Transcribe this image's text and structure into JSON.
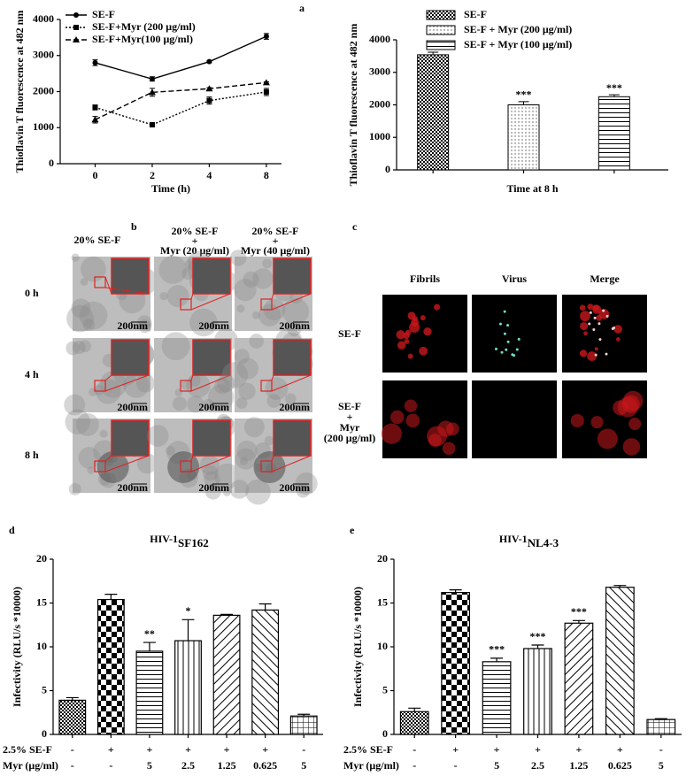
{
  "panel_labels": [
    "a",
    "b",
    "c",
    "d",
    "e"
  ],
  "micrographs": {
    "column_headers": [
      [
        "20% SE-F"
      ],
      [
        "20% SE-F",
        "+",
        "Myr (20 μg/ml)"
      ],
      [
        "20% SE-F",
        "+",
        "Myr (40 μg/ml)"
      ]
    ],
    "row_labels": [
      "0 h",
      "4 h",
      "8 h"
    ],
    "scale_label": "200nm"
  },
  "confocal": {
    "column_headers": [
      "Fibrils",
      "Virus",
      "Merge"
    ],
    "row_labels": [
      [
        "SE-F"
      ],
      [
        "SE-F",
        "+",
        "Myr",
        "(200 μg/ml)"
      ]
    ]
  },
  "chart_data": [
    {
      "type": "line",
      "x_label": "Time (h)",
      "y_label": "Thioflavin T fluorescence at 482 nm",
      "categories": [
        "0",
        "2",
        "4",
        "8"
      ],
      "ylim": [
        0,
        4000
      ],
      "yticks": [
        0,
        1000,
        2000,
        3000,
        4000
      ],
      "series": [
        {
          "name": "SE-F",
          "color": "#000000",
          "marker": "circle",
          "dash": "solid",
          "values": [
            2800,
            2350,
            2830,
            3530
          ],
          "errors": [
            80,
            60,
            30,
            80
          ]
        },
        {
          "name": "SE-F+Myr (200 μg/ml)",
          "color": "#000000",
          "marker": "square",
          "dash": "dotted",
          "values": [
            1560,
            1080,
            1750,
            1990
          ],
          "errors": [
            70,
            30,
            100,
            100
          ]
        },
        {
          "name": "SE-F+Myr(100 μg/ml)",
          "color": "#000000",
          "marker": "triangle",
          "dash": "dashed",
          "values": [
            1220,
            1980,
            2080,
            2250
          ],
          "errors": [
            90,
            110,
            30,
            20
          ]
        }
      ]
    },
    {
      "type": "bar",
      "x_label": "Time at 8 h",
      "y_label": "Thioflavin T fluorescence at 482 nm",
      "ylim": [
        0,
        4000
      ],
      "yticks": [
        0,
        1000,
        2000,
        3000,
        4000
      ],
      "series": [
        {
          "name": "SE-F",
          "pattern": "fine-check",
          "values": [
            3540
          ],
          "errors": [
            80
          ]
        },
        {
          "name": "SE-F + Myr (200 μg/ml)",
          "pattern": "dots",
          "values": [
            2000
          ],
          "errors": [
            100
          ],
          "annotation": "***"
        },
        {
          "name": "SE-F + Myr (100 μg/ml)",
          "pattern": "hlines",
          "values": [
            2250
          ],
          "errors": [
            60
          ],
          "annotation": "***"
        }
      ]
    },
    {
      "type": "bar-table",
      "title": "HIV-1",
      "title_sub": "SF162",
      "y_label": "Infectivity (RLU/s *10000)",
      "ylim": [
        0,
        20
      ],
      "yticks": [
        0,
        5,
        10,
        15,
        20
      ],
      "values": [
        3.9,
        15.4,
        9.5,
        10.7,
        13.6,
        14.2,
        2.1
      ],
      "errors": [
        0.3,
        0.6,
        1.0,
        2.4,
        0.1,
        0.7,
        0.2
      ],
      "annotations": [
        null,
        null,
        "**",
        "*",
        null,
        null,
        null
      ],
      "patterns": [
        "fine-check",
        "checker",
        "hlines",
        "vlines",
        "diag",
        "antidiag",
        "grid"
      ],
      "conditions": [
        {
          "label": "2.5% SE-F",
          "values": [
            "-",
            "+",
            "+",
            "+",
            "+",
            "+",
            "-"
          ]
        },
        {
          "label": "Myr (μg/ml)",
          "values": [
            "-",
            "-",
            "5",
            "2.5",
            "1.25",
            "0.625",
            "5"
          ]
        }
      ]
    },
    {
      "type": "bar-table",
      "title": "HIV-1",
      "title_sub": "NL4-3",
      "y_label": "Infectivity (RLU/s *10000)",
      "ylim": [
        0,
        20
      ],
      "yticks": [
        0,
        5,
        10,
        15,
        20
      ],
      "values": [
        2.6,
        16.2,
        8.3,
        9.8,
        12.7,
        16.8,
        1.7
      ],
      "errors": [
        0.4,
        0.3,
        0.4,
        0.4,
        0.3,
        0.2,
        0.1
      ],
      "annotations": [
        null,
        null,
        "***",
        "***",
        "***",
        null,
        null
      ],
      "patterns": [
        "fine-check",
        "checker",
        "hlines",
        "vlines",
        "diag",
        "antidiag",
        "grid"
      ],
      "conditions": [
        {
          "label": "2.5% SE-F",
          "values": [
            "-",
            "+",
            "+",
            "+",
            "+",
            "+",
            "-"
          ]
        },
        {
          "label": "Myr (μg/ml)",
          "values": [
            "-",
            "-",
            "5",
            "2.5",
            "1.25",
            "0.625",
            "5"
          ]
        }
      ]
    }
  ]
}
